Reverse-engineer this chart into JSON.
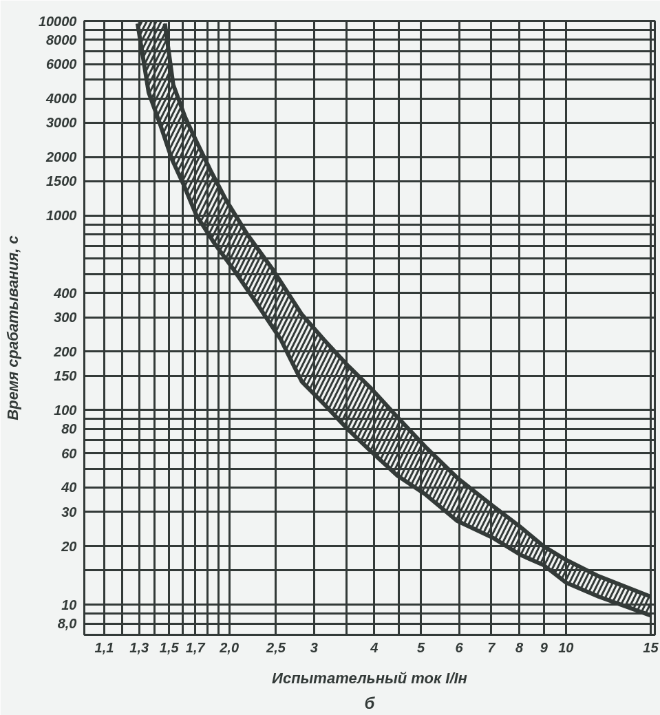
{
  "chart_data": {
    "type": "line",
    "xlabel": "Испытательный ток I/Iн",
    "ylabel": "Время срабатывания, с",
    "annotations": [
      "б"
    ],
    "log": "xy",
    "grid": true,
    "marker": "none",
    "line_style": "solid",
    "xlim": [
      1,
      15.3
    ],
    "ylim": [
      7,
      10000
    ],
    "xticks": [
      {
        "value": 1.1,
        "label": "1,1"
      },
      {
        "value": 1.2,
        "label": null
      },
      {
        "value": 1.3,
        "label": "1,3"
      },
      {
        "value": 1.4,
        "label": null
      },
      {
        "value": 1.5,
        "label": "1,5"
      },
      {
        "value": 1.6,
        "label": null
      },
      {
        "value": 1.7,
        "label": "1,7"
      },
      {
        "value": 1.8,
        "label": null
      },
      {
        "value": 1.9,
        "label": null
      },
      {
        "value": 2.0,
        "label": "2,0"
      },
      {
        "value": 2.5,
        "label": "2,5"
      },
      3,
      {
        "value": 3.5,
        "label": null
      },
      4,
      {
        "value": 4.5,
        "label": null
      },
      5,
      6,
      7,
      8,
      9,
      10,
      15
    ],
    "yticks": [
      {
        "value": 8,
        "label": "8,0"
      },
      {
        "value": 9,
        "label": null
      },
      10,
      {
        "value": 15,
        "label": null
      },
      20,
      30,
      40,
      {
        "value": 50,
        "label": null
      },
      60,
      {
        "value": 70,
        "label": null
      },
      80,
      {
        "value": 90,
        "label": null
      },
      100,
      150,
      200,
      300,
      400,
      {
        "value": 500,
        "label": null
      },
      {
        "value": 600,
        "label": null
      },
      {
        "value": 700,
        "label": null
      },
      {
        "value": 800,
        "label": null
      },
      {
        "value": 900,
        "label": null
      },
      1000,
      1500,
      2000,
      3000,
      4000,
      {
        "value": 5000,
        "label": null
      },
      6000,
      {
        "value": 7000,
        "label": null
      },
      8000,
      {
        "value": 9000,
        "label": null
      },
      10000
    ],
    "series": [
      {
        "color": "#333a38",
        "x": [
          1.29,
          1.36,
          1.44,
          1.52,
          1.61,
          1.71,
          1.87,
          2.04,
          2.27,
          2.56,
          2.72,
          2.83,
          3.15,
          3.52,
          3.92,
          4.47,
          5.1,
          5.94,
          7.07,
          8.06,
          8.98,
          10,
          11.7,
          15
        ],
        "values": [
          9700,
          4300,
          2900,
          1950,
          1430,
          1000,
          710,
          530,
          360,
          230,
          170,
          140,
          107,
          80,
          62,
          46,
          37,
          27,
          22,
          18,
          16,
          13,
          11,
          8.8
        ]
      },
      {
        "color": "#333a38",
        "x": [
          1.29,
          1.36,
          1.44,
          1.47,
          1.53,
          1.62,
          1.71,
          1.83,
          1.97,
          2.18,
          2.46,
          2.83,
          3.15,
          3.52,
          3.92,
          4.47,
          5.1,
          5.94,
          7.07,
          8.06,
          8.98,
          10,
          11.7,
          15
        ],
        "values": [
          null,
          null,
          null,
          9700,
          4700,
          3200,
          2400,
          1700,
          1200,
          800,
          530,
          310,
          229,
          170,
          131,
          92,
          65,
          45,
          32,
          25,
          20,
          17,
          14,
          11
        ],
        "lower": [
          9700,
          4300,
          2900,
          2500,
          1900,
          1400,
          1000,
          760,
          590,
          420,
          270,
          140,
          107,
          80,
          62,
          46,
          37,
          27,
          22,
          18,
          16,
          13,
          11,
          8.8
        ],
        "upper": [
          10000,
          10000,
          10000,
          9700,
          4700,
          3200,
          2400,
          1700,
          1200,
          800,
          530,
          310,
          229,
          170,
          131,
          92,
          65,
          45,
          32,
          25,
          20,
          17,
          14,
          11
        ]
      }
    ]
  }
}
